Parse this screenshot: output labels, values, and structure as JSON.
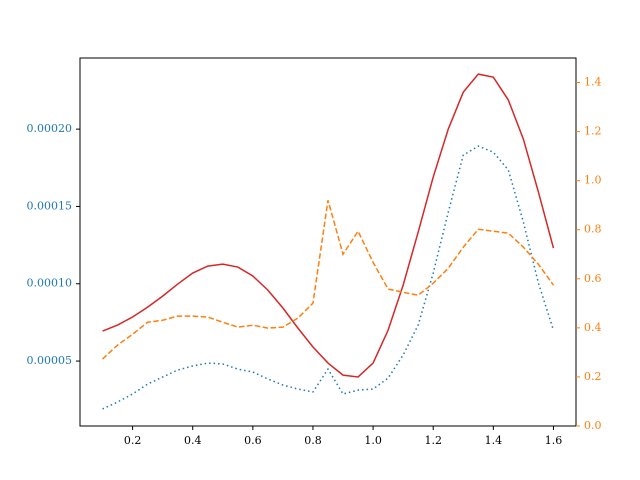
{
  "chart_data": {
    "type": "line",
    "x": [
      0.1,
      0.15,
      0.2,
      0.25,
      0.3,
      0.35,
      0.4,
      0.45,
      0.5,
      0.55,
      0.6,
      0.65,
      0.7,
      0.75,
      0.8,
      0.85,
      0.9,
      0.95,
      1.0,
      1.05,
      1.1,
      1.15,
      1.2,
      1.25,
      1.3,
      1.35,
      1.4,
      1.45,
      1.5,
      1.55,
      1.6
    ],
    "xlim": [
      0.025,
      1.675
    ],
    "xticks": [
      0.2,
      0.4,
      0.6,
      0.8,
      {
        "value": 1.0,
        "label": "1.0"
      },
      1.2,
      1.4,
      1.6
    ],
    "ylim": [
      8e-06,
      0.000246
    ],
    "yticks": [
      {
        "value": 5e-05,
        "label": "0.00005"
      },
      {
        "value": 0.0001,
        "label": "0.00010"
      },
      {
        "value": 0.00015,
        "label": "0.00015"
      },
      {
        "value": 0.0002,
        "label": "0.00020"
      }
    ],
    "y_tick_color": "#1f77b4",
    "y2lim": [
      0,
      1.5
    ],
    "y2ticks": [
      {
        "value": 0,
        "label": "0.0"
      },
      0.2,
      0.4,
      0.6,
      0.8,
      {
        "value": 1.0,
        "label": "1.0"
      },
      1.2,
      1.4
    ],
    "y2_tick_color": "#ff7f0e",
    "series": [
      {
        "color": "#d62728",
        "linestyle": "solid",
        "axis": "y",
        "values": [
          6.94e-05,
          7.33e-05,
          7.85e-05,
          8.49e-05,
          9.2e-05,
          9.98e-05,
          0.0001069,
          0.0001114,
          0.0001127,
          0.0001108,
          0.000105,
          9.59e-05,
          8.43e-05,
          7.13e-05,
          5.91e-05,
          4.87e-05,
          4.09e-05,
          3.97e-05,
          4.87e-05,
          7e-05,
          9.91e-05,
          0.0001334,
          0.000169,
          0.0002,
          0.0002239,
          0.0002356,
          0.0002336,
          0.0002188,
          0.0001935,
          0.0001593,
          0.0001231
        ]
      },
      {
        "color": "#1f77b4",
        "linestyle": "dotted",
        "axis": "y",
        "values": [
          1.9e-05,
          2.35e-05,
          2.87e-05,
          3.51e-05,
          3.97e-05,
          4.42e-05,
          4.68e-05,
          4.87e-05,
          4.81e-05,
          4.48e-05,
          4.29e-05,
          3.84e-05,
          3.45e-05,
          3.19e-05,
          3e-05,
          4.48e-05,
          2.87e-05,
          3.12e-05,
          3.19e-05,
          3.9e-05,
          5.39e-05,
          7.33e-05,
          0.0001069,
          0.0001463,
          0.0001832,
          0.000189,
          0.0001851,
          0.0001735,
          0.0001399,
          0.0001004,
          7e-05
        ]
      },
      {
        "color": "#ff7f0e",
        "linestyle": "dashed",
        "axis": "y2",
        "values": [
          0.273,
          0.33,
          0.374,
          0.423,
          0.431,
          0.448,
          0.448,
          0.444,
          0.423,
          0.403,
          0.411,
          0.399,
          0.403,
          0.44,
          0.501,
          0.92,
          0.7,
          0.794,
          0.667,
          0.558,
          0.545,
          0.533,
          0.582,
          0.643,
          0.729,
          0.802,
          0.794,
          0.786,
          0.729,
          0.659,
          0.574
        ]
      }
    ]
  }
}
